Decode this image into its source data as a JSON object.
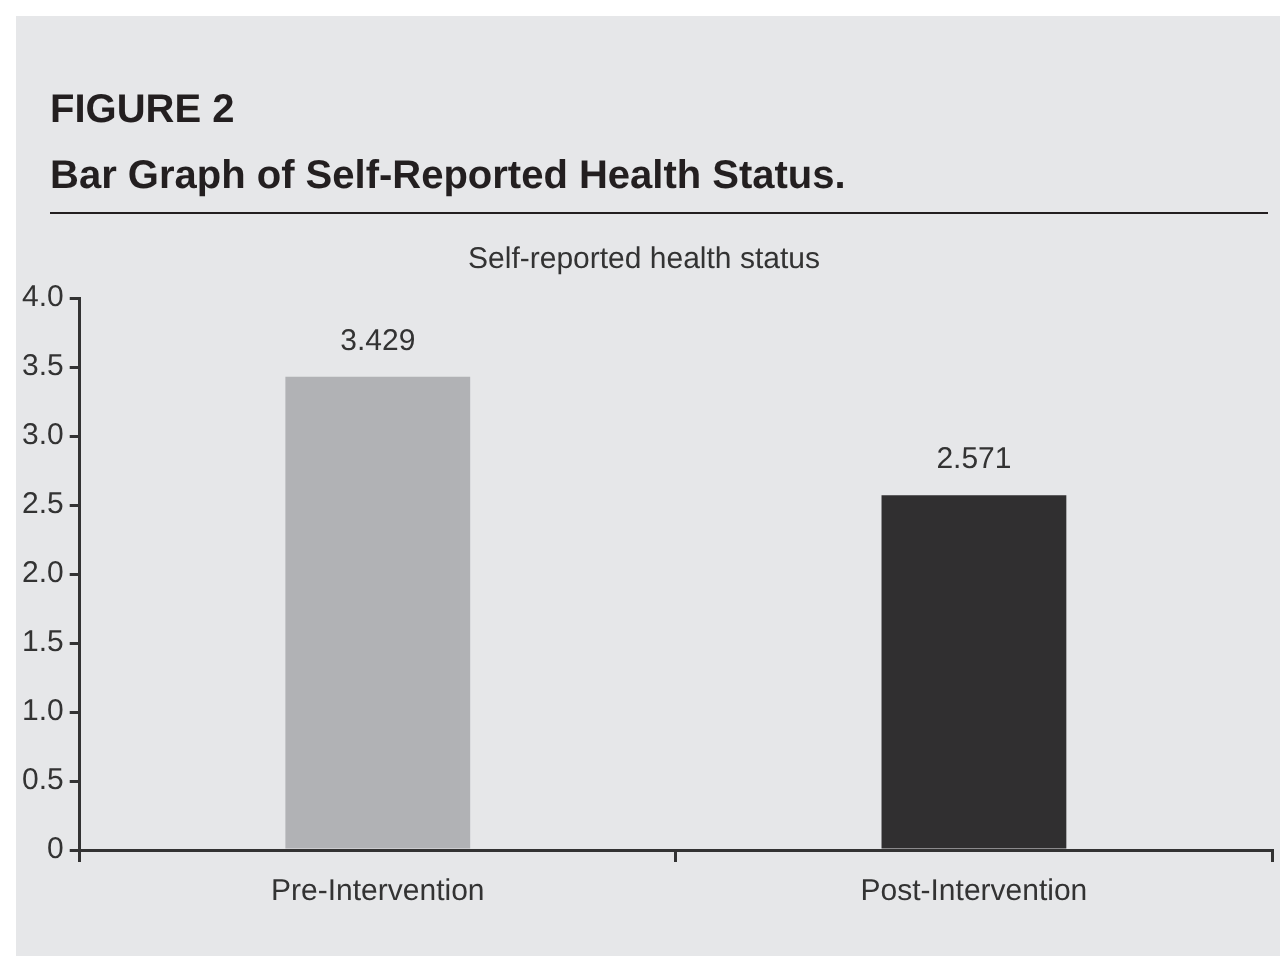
{
  "chart_data": {
    "type": "bar",
    "title": "Self-reported health status",
    "annotations": [
      "FIGURE 2",
      "Bar Graph of Self-Reported Health Status."
    ],
    "categories": [
      "Pre-Intervention",
      "Post-Intervention"
    ],
    "values": [
      3.429,
      2.571
    ],
    "colors": [
      "#b1b2b5",
      "#302f30"
    ],
    "ylim": [
      0,
      4.0
    ],
    "yticks": [
      {
        "value": 0,
        "label": "0"
      },
      {
        "value": 0.5,
        "label": "0.5"
      },
      {
        "value": 1,
        "label": "1.0"
      },
      {
        "value": 1.5,
        "label": "1.5"
      },
      {
        "value": 2,
        "label": "2.0"
      },
      {
        "value": 2.5,
        "label": "2.5"
      },
      {
        "value": 3,
        "label": "3.0"
      },
      {
        "value": 3.5,
        "label": "3.5"
      },
      {
        "value": 4,
        "label": "4.0"
      }
    ],
    "data_labels": true,
    "grid": false,
    "legend": false
  }
}
